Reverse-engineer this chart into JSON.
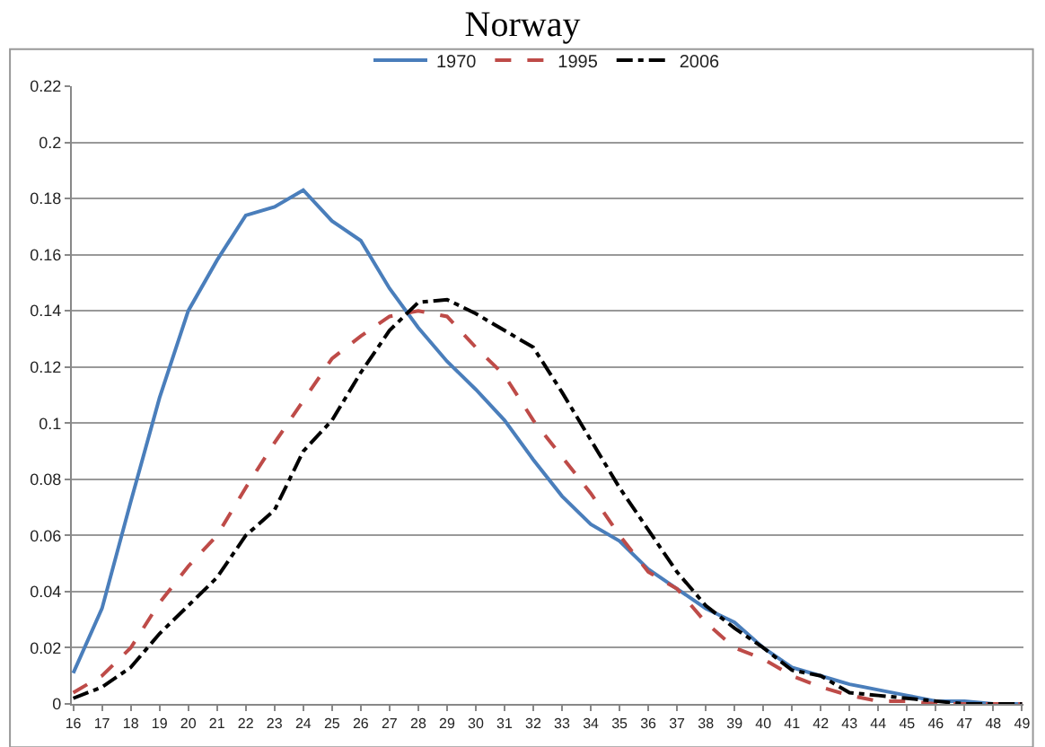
{
  "chart_data": {
    "type": "line",
    "title": "Norway",
    "categories": [
      "16",
      "17",
      "18",
      "19",
      "20",
      "21",
      "22",
      "23",
      "24",
      "25",
      "26",
      "27",
      "28",
      "29",
      "30",
      "31",
      "32",
      "33",
      "34",
      "35",
      "36",
      "37",
      "38",
      "39",
      "40",
      "41",
      "42",
      "43",
      "44",
      "45",
      "46",
      "47",
      "48",
      "49"
    ],
    "series": [
      {
        "name": "1970",
        "color": "#4a7ebb",
        "line_style": "solid",
        "values": [
          0.011,
          0.034,
          0.072,
          0.109,
          0.14,
          0.158,
          0.174,
          0.177,
          0.183,
          0.172,
          0.165,
          0.148,
          0.134,
          0.122,
          0.112,
          0.101,
          0.087,
          0.074,
          0.064,
          0.058,
          0.048,
          0.041,
          0.034,
          0.029,
          0.02,
          0.013,
          0.01,
          0.007,
          0.005,
          0.003,
          0.001,
          0.001,
          0.0,
          0.0
        ]
      },
      {
        "name": "1995",
        "color": "#be4b48",
        "line_style": "dashed",
        "values": [
          0.004,
          0.01,
          0.02,
          0.036,
          0.049,
          0.06,
          0.077,
          0.093,
          0.108,
          0.123,
          0.131,
          0.138,
          0.14,
          0.138,
          0.127,
          0.117,
          0.101,
          0.088,
          0.075,
          0.06,
          0.047,
          0.041,
          0.029,
          0.02,
          0.016,
          0.01,
          0.006,
          0.003,
          0.001,
          0.001,
          0.0,
          0.0,
          0.0,
          0.0
        ]
      },
      {
        "name": "2006",
        "color": "#000000",
        "line_style": "dashdot",
        "values": [
          0.002,
          0.006,
          0.013,
          0.025,
          0.035,
          0.045,
          0.06,
          0.069,
          0.09,
          0.101,
          0.118,
          0.133,
          0.143,
          0.144,
          0.139,
          0.133,
          0.127,
          0.111,
          0.094,
          0.077,
          0.062,
          0.047,
          0.035,
          0.027,
          0.02,
          0.012,
          0.01,
          0.004,
          0.003,
          0.002,
          0.001,
          0.0,
          0.0,
          0.0
        ]
      }
    ],
    "ylim": [
      0,
      0.22
    ],
    "yticks": [
      0,
      0.02,
      0.04,
      0.06,
      0.08,
      0.1,
      0.12,
      0.14,
      0.16,
      0.18,
      0.2,
      0.22
    ],
    "grid": "y",
    "legend": "top",
    "marker": "none"
  }
}
